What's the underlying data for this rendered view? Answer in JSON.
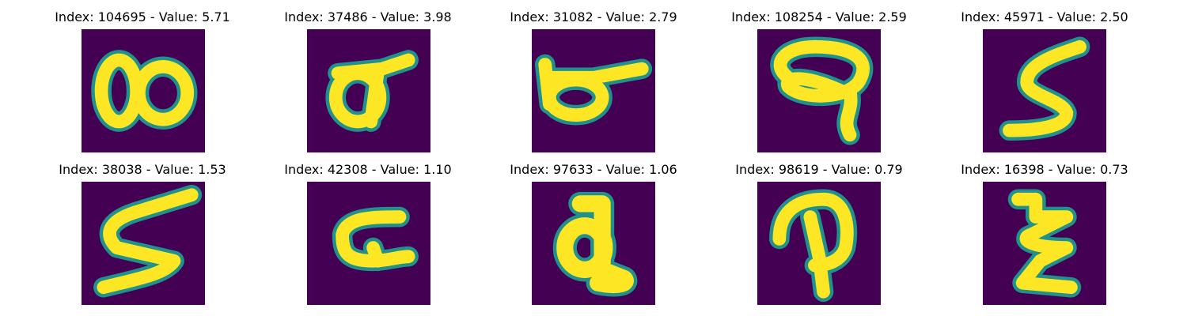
{
  "colors": {
    "background": "#440154",
    "edge": "#21918c",
    "mid": "#5ec962",
    "stroke": "#fde725"
  },
  "panels": [
    {
      "title": "Index: 104695 - Value: 5.71",
      "glyph": "double-loop-8"
    },
    {
      "title": "Index: 37486 - Value: 3.98",
      "glyph": "loop-with-bar"
    },
    {
      "title": "Index: 31082 - Value: 2.79",
      "glyph": "loop-with-bar"
    },
    {
      "title": "Index: 108254 - Value: 2.59",
      "glyph": "loop-with-tail"
    },
    {
      "title": "Index: 45971 - Value: 2.50",
      "glyph": "s-shape"
    },
    {
      "title": "Index: 38038 - Value: 1.53",
      "glyph": "zigzag-s"
    },
    {
      "title": "Index: 42308 - Value: 1.10",
      "glyph": "c-shape"
    },
    {
      "title": "Index: 97633 - Value: 1.06",
      "glyph": "a-shape"
    },
    {
      "title": "Index: 98619 - Value: 0.79",
      "glyph": "d-shape"
    },
    {
      "title": "Index: 16398 - Value: 0.73",
      "glyph": "z-shape"
    }
  ]
}
